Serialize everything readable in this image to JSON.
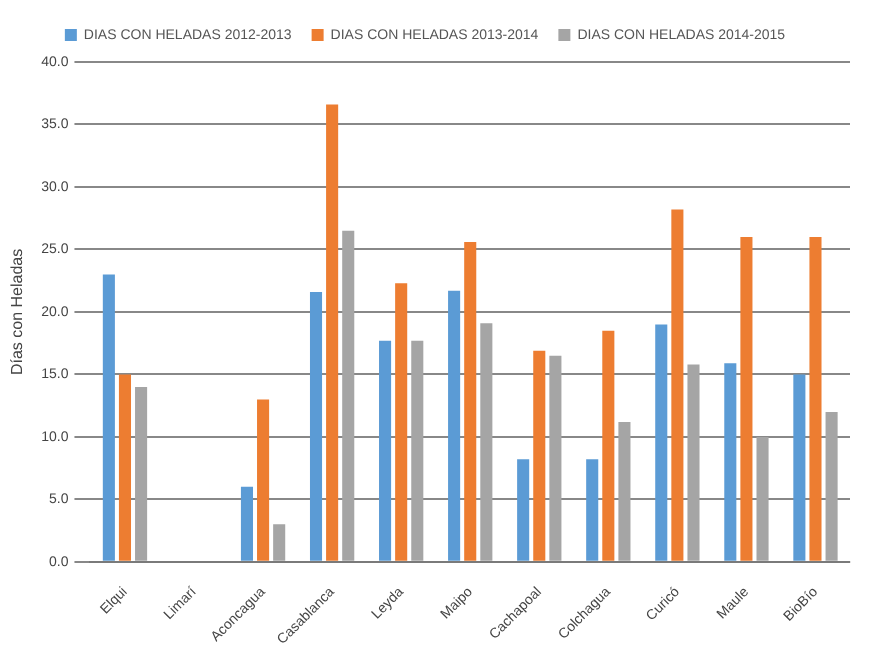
{
  "chart_data": {
    "type": "bar",
    "ylabel": "Días con Heladas",
    "categories": [
      "Elqui",
      "Limarí",
      "Aconcagua",
      "Casablanca",
      "Leyda",
      "Maipo",
      "Cachapoal",
      "Colchagua",
      "Curicó",
      "Maule",
      "BioBío"
    ],
    "series": [
      {
        "name": "DIAS CON HELADAS 2012-2013",
        "color": "#5b9bd5",
        "values": [
          23,
          0,
          6,
          21.6,
          17.7,
          21.7,
          8.2,
          8.2,
          19,
          15.9,
          15
        ]
      },
      {
        "name": "DIAS CON HELADAS 2013-2014",
        "color": "#ed7d31",
        "values": [
          15,
          0,
          13,
          36.6,
          22.3,
          25.6,
          16.9,
          18.5,
          28.2,
          26,
          26
        ]
      },
      {
        "name": "DIAS CON HELADAS 2014-2015",
        "color": "#a5a5a5",
        "values": [
          14,
          0,
          3,
          26.5,
          17.7,
          19.1,
          16.5,
          11.2,
          15.8,
          10,
          12
        ]
      }
    ],
    "ylim": [
      0,
      40
    ],
    "yticks": [
      {
        "value": 0,
        "label": "0.0"
      },
      {
        "value": 5,
        "label": "5.0"
      },
      {
        "value": 10,
        "label": "10.0"
      },
      {
        "value": 15,
        "label": "15.0"
      },
      {
        "value": 20,
        "label": "20.0"
      },
      {
        "value": 25,
        "label": "25.0"
      },
      {
        "value": 30,
        "label": "30.0"
      },
      {
        "value": 35,
        "label": "35.0"
      },
      {
        "value": 40,
        "label": "40.0"
      }
    ],
    "grid": "y",
    "legend": "top"
  }
}
